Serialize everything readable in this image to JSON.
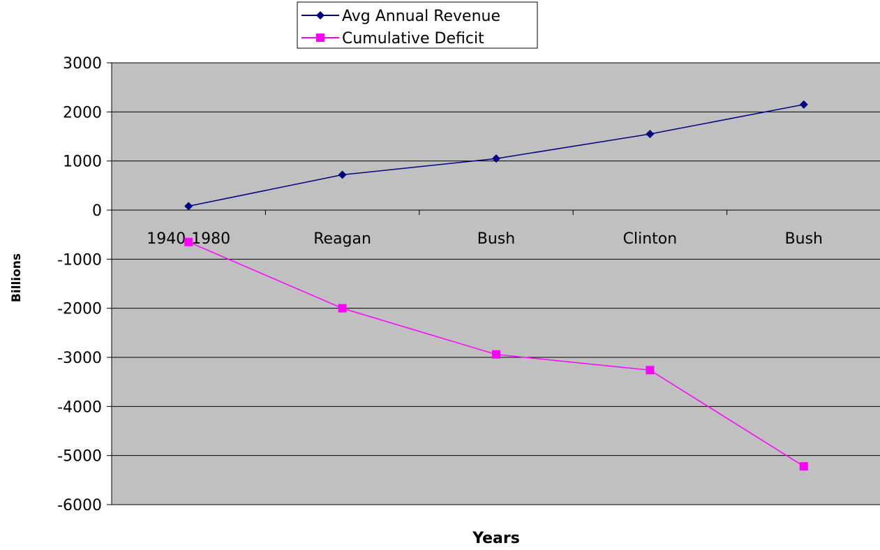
{
  "chart_data": {
    "type": "line",
    "title": "",
    "xlabel": "Years",
    "ylabel": "Billions",
    "categories": [
      "1940-1980",
      "Reagan",
      "Bush",
      "Clinton",
      "Bush"
    ],
    "ylim": [
      -6000,
      3000
    ],
    "yticks": [
      3000,
      2000,
      1000,
      0,
      -1000,
      -2000,
      -3000,
      -4000,
      -5000,
      -6000
    ],
    "grid": true,
    "legend_position": "top",
    "plot_background": "#c0c0c0",
    "series": [
      {
        "name": "Avg Annual Revenue",
        "values": [
          80,
          720,
          1050,
          1550,
          2150
        ],
        "color": "#000080",
        "marker": "diamond"
      },
      {
        "name": "Cumulative Deficit",
        "values": [
          -650,
          -2000,
          -2940,
          -3260,
          -5220
        ],
        "color": "#ff00ff",
        "marker": "square"
      }
    ]
  }
}
